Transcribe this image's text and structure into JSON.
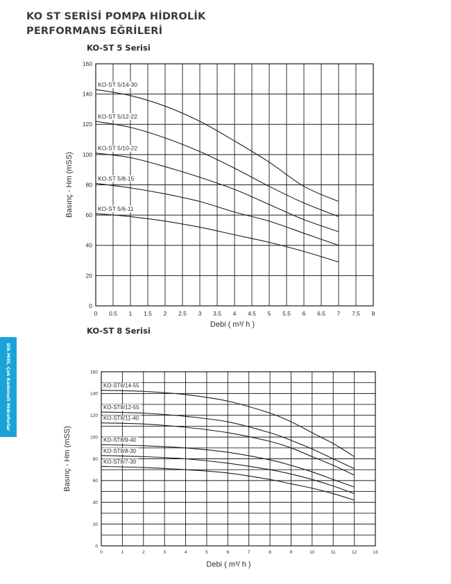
{
  "page": {
    "title": "KO ST SERİSİ POMPA HİDROLİK PERFORMANS EĞRİLERİ",
    "side_tab": "Dik Milli, Çok Kademeli Hidroforlar"
  },
  "chart_data": [
    {
      "type": "line",
      "title": "KO-ST 5 Serisi",
      "xlabel": "Debi ( m³/ h )",
      "ylabel": "Basınç - Hm (mSS)",
      "xlim": [
        0,
        8
      ],
      "ylim": [
        0,
        160
      ],
      "xticks": [
        0,
        0.5,
        1,
        1.5,
        2,
        2.5,
        3,
        3.5,
        4,
        4.5,
        5,
        5.5,
        6,
        6.5,
        7,
        7.5,
        8
      ],
      "yticks": [
        0,
        20,
        40,
        60,
        80,
        100,
        120,
        140,
        160
      ],
      "grid": true,
      "series": [
        {
          "name": "KO-ST 5/14-30",
          "x": [
            0,
            1,
            2,
            3,
            4,
            5,
            6,
            7
          ],
          "y": [
            143,
            139,
            132,
            122,
            109,
            95,
            79,
            69
          ]
        },
        {
          "name": "KO-ST 5/12-22",
          "x": [
            0,
            1,
            2,
            3,
            4,
            5,
            6,
            7
          ],
          "y": [
            122,
            118,
            111,
            102,
            91,
            79,
            68,
            59
          ]
        },
        {
          "name": "KO-ST 5/10-22",
          "x": [
            0,
            1,
            2,
            3,
            4,
            5,
            6,
            7
          ],
          "y": [
            101,
            98,
            92,
            85,
            77,
            67,
            57,
            49
          ]
        },
        {
          "name": "KO-ST 5/8-15",
          "x": [
            0,
            1,
            2,
            3,
            4,
            5,
            6,
            7
          ],
          "y": [
            81,
            78,
            74,
            69,
            62,
            56,
            48,
            40
          ]
        },
        {
          "name": "KO-ST 5/6-11",
          "x": [
            0,
            1,
            2,
            3,
            4,
            5,
            6,
            7
          ],
          "y": [
            61,
            59,
            56,
            52,
            47,
            42,
            36,
            29
          ]
        }
      ]
    },
    {
      "type": "line",
      "title": "KO-ST 8 Serisi",
      "xlabel": "Debi ( m³/ h )",
      "ylabel": "Basınç - Hm (mSS)",
      "xlim": [
        0,
        13
      ],
      "ylim": [
        0,
        160
      ],
      "xticks": [
        0,
        1,
        2,
        3,
        4,
        5,
        6,
        7,
        8,
        9,
        10,
        11,
        12,
        13
      ],
      "yticks": [
        0,
        20,
        40,
        60,
        80,
        100,
        120,
        140,
        160
      ],
      "grid": true,
      "series": [
        {
          "name": "KO-ST8/14-55",
          "x": [
            0,
            2,
            4,
            6,
            8,
            9,
            10,
            11,
            12
          ],
          "y": [
            143,
            142,
            139,
            133,
            122,
            114,
            104,
            94,
            82
          ]
        },
        {
          "name": "KO-ST8/12-55",
          "x": [
            0,
            2,
            4,
            6,
            8,
            9,
            10,
            11,
            12
          ],
          "y": [
            123,
            122,
            119,
            114,
            104,
            97,
            89,
            80,
            71
          ]
        },
        {
          "name": "KO-ST8/11-40",
          "x": [
            0,
            2,
            4,
            6,
            8,
            9,
            10,
            11,
            12
          ],
          "y": [
            113,
            112,
            109,
            104,
            96,
            90,
            82,
            74,
            65
          ]
        },
        {
          "name": "KO-ST8/9-40",
          "x": [
            0,
            2,
            4,
            6,
            8,
            9,
            10,
            11,
            12
          ],
          "y": [
            93,
            92,
            90,
            86,
            79,
            74,
            68,
            61,
            54
          ]
        },
        {
          "name": "KO-ST8/8-30",
          "x": [
            0,
            2,
            4,
            6,
            8,
            9,
            10,
            11,
            12
          ],
          "y": [
            83,
            82,
            80,
            76,
            70,
            66,
            61,
            55,
            48
          ]
        },
        {
          "name": "KO-ST8/7-30",
          "x": [
            0,
            2,
            4,
            6,
            8,
            9,
            10,
            11,
            12
          ],
          "y": [
            73,
            72,
            70,
            67,
            61,
            57,
            53,
            48,
            42
          ]
        }
      ]
    }
  ]
}
